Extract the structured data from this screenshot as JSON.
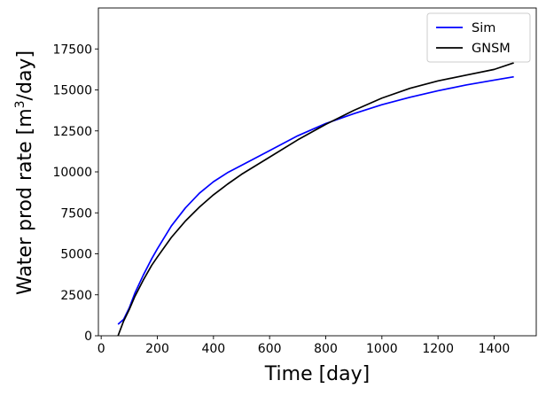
{
  "chart_data": {
    "type": "line",
    "title": "",
    "xlabel": "Time [day]",
    "ylabel_main": "Water prod rate [m",
    "ylabel_sup": "3",
    "ylabel_tail": "/day]",
    "xlim": [
      -10,
      1550
    ],
    "ylim": [
      0,
      20000
    ],
    "x_ticks": [
      0,
      200,
      400,
      600,
      800,
      1000,
      1200,
      1400
    ],
    "y_ticks": [
      0,
      2500,
      5000,
      7500,
      10000,
      12500,
      15000,
      17500
    ],
    "grid": false,
    "legend_position": "top-right",
    "series": [
      {
        "name": "Sim",
        "color": "#0000ff",
        "x": [
          60,
          80,
          100,
          120,
          150,
          180,
          200,
          250,
          300,
          350,
          400,
          450,
          500,
          600,
          700,
          800,
          900,
          1000,
          1100,
          1200,
          1300,
          1400,
          1470
        ],
        "y": [
          700,
          1000,
          1700,
          2600,
          3700,
          4700,
          5300,
          6700,
          7800,
          8700,
          9400,
          9950,
          10400,
          11300,
          12200,
          12950,
          13550,
          14100,
          14550,
          14950,
          15300,
          15600,
          15800
        ]
      },
      {
        "name": "GNSM",
        "color": "#000000",
        "x": [
          60,
          80,
          100,
          120,
          150,
          180,
          200,
          250,
          300,
          350,
          400,
          450,
          500,
          600,
          700,
          800,
          900,
          1000,
          1100,
          1200,
          1300,
          1400,
          1470
        ],
        "y": [
          0,
          900,
          1600,
          2400,
          3400,
          4300,
          4800,
          6000,
          7000,
          7850,
          8600,
          9250,
          9850,
          10900,
          11950,
          12900,
          13750,
          14500,
          15100,
          15550,
          15900,
          16250,
          16650
        ]
      }
    ]
  }
}
